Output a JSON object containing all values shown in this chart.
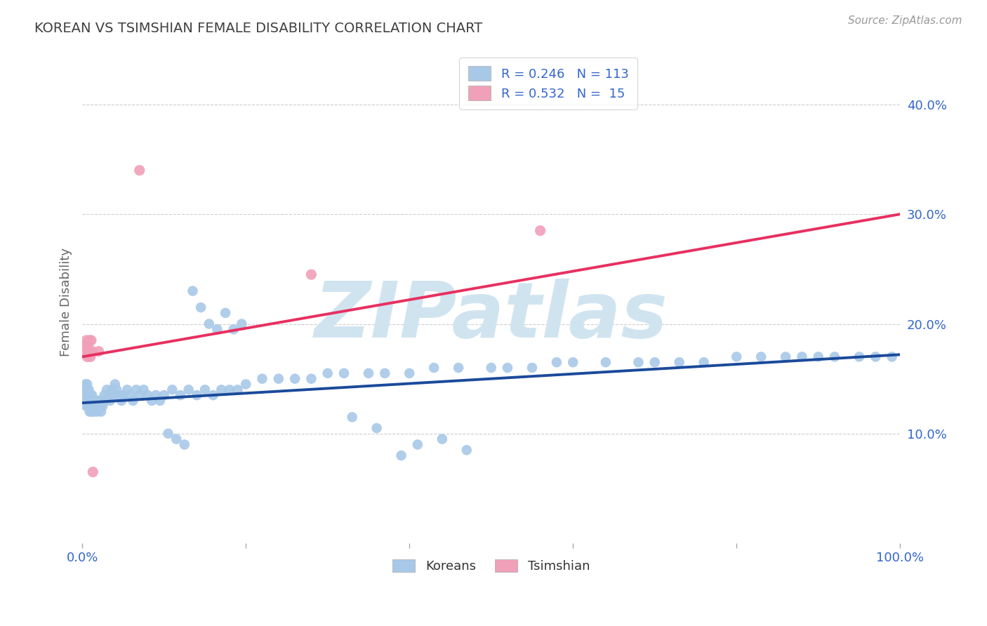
{
  "title": "KOREAN VS TSIMSHIAN FEMALE DISABILITY CORRELATION CHART",
  "source": "Source: ZipAtlas.com",
  "ylabel": "Female Disability",
  "xlim": [
    0.0,
    1.0
  ],
  "ylim": [
    0.0,
    0.44
  ],
  "yticks": [
    0.1,
    0.2,
    0.3,
    0.4
  ],
  "ytick_labels": [
    "10.0%",
    "20.0%",
    "30.0%",
    "40.0%"
  ],
  "xticks": [
    0.0,
    0.2,
    0.4,
    0.6,
    0.8,
    1.0
  ],
  "xtick_labels": [
    "0.0%",
    "",
    "",
    "",
    "",
    "100.0%"
  ],
  "korean_R": 0.246,
  "korean_N": 113,
  "tsimshian_R": 0.532,
  "tsimshian_N": 15,
  "korean_color": "#a8c8e8",
  "tsimshian_color": "#f0a0b8",
  "korean_line_color": "#1a4a9a",
  "tsimshian_line_color": "#e83060",
  "watermark": "ZIPatlas",
  "watermark_color": "#d0e4f0",
  "grid_color": "#cccccc",
  "background_color": "#ffffff",
  "title_color": "#404040",
  "axis_label_color": "#3366cc",
  "korean_line_y0": 0.128,
  "korean_line_y1": 0.172,
  "tsimshian_line_y0": 0.17,
  "tsimshian_line_y1": 0.3,
  "korean_scatter_x": [
    0.003,
    0.004,
    0.004,
    0.005,
    0.005,
    0.006,
    0.006,
    0.007,
    0.007,
    0.008,
    0.008,
    0.009,
    0.009,
    0.01,
    0.01,
    0.011,
    0.011,
    0.012,
    0.012,
    0.013,
    0.014,
    0.014,
    0.015,
    0.015,
    0.016,
    0.017,
    0.018,
    0.019,
    0.02,
    0.021,
    0.022,
    0.023,
    0.024,
    0.025,
    0.027,
    0.028,
    0.03,
    0.032,
    0.034,
    0.036,
    0.038,
    0.04,
    0.042,
    0.045,
    0.048,
    0.05,
    0.055,
    0.058,
    0.062,
    0.066,
    0.07,
    0.075,
    0.08,
    0.085,
    0.09,
    0.095,
    0.1,
    0.11,
    0.12,
    0.13,
    0.14,
    0.15,
    0.16,
    0.17,
    0.18,
    0.19,
    0.2,
    0.22,
    0.24,
    0.26,
    0.28,
    0.3,
    0.32,
    0.35,
    0.37,
    0.4,
    0.43,
    0.46,
    0.5,
    0.52,
    0.55,
    0.58,
    0.6,
    0.64,
    0.68,
    0.7,
    0.73,
    0.76,
    0.8,
    0.83,
    0.86,
    0.88,
    0.9,
    0.92,
    0.95,
    0.97,
    0.99,
    0.39,
    0.41,
    0.44,
    0.47,
    0.33,
    0.36,
    0.135,
    0.145,
    0.155,
    0.165,
    0.175,
    0.185,
    0.195,
    0.105,
    0.115,
    0.125
  ],
  "korean_scatter_y": [
    0.135,
    0.13,
    0.145,
    0.125,
    0.14,
    0.13,
    0.145,
    0.125,
    0.135,
    0.13,
    0.14,
    0.13,
    0.12,
    0.135,
    0.125,
    0.13,
    0.12,
    0.135,
    0.125,
    0.13,
    0.125,
    0.12,
    0.13,
    0.125,
    0.13,
    0.125,
    0.12,
    0.13,
    0.125,
    0.13,
    0.125,
    0.12,
    0.13,
    0.125,
    0.135,
    0.13,
    0.14,
    0.135,
    0.13,
    0.14,
    0.135,
    0.145,
    0.14,
    0.135,
    0.13,
    0.135,
    0.14,
    0.135,
    0.13,
    0.14,
    0.135,
    0.14,
    0.135,
    0.13,
    0.135,
    0.13,
    0.135,
    0.14,
    0.135,
    0.14,
    0.135,
    0.14,
    0.135,
    0.14,
    0.14,
    0.14,
    0.145,
    0.15,
    0.15,
    0.15,
    0.15,
    0.155,
    0.155,
    0.155,
    0.155,
    0.155,
    0.16,
    0.16,
    0.16,
    0.16,
    0.16,
    0.165,
    0.165,
    0.165,
    0.165,
    0.165,
    0.165,
    0.165,
    0.17,
    0.17,
    0.17,
    0.17,
    0.17,
    0.17,
    0.17,
    0.17,
    0.17,
    0.08,
    0.09,
    0.095,
    0.085,
    0.115,
    0.105,
    0.23,
    0.215,
    0.2,
    0.195,
    0.21,
    0.195,
    0.2,
    0.1,
    0.095,
    0.09
  ],
  "tsimshian_scatter_x": [
    0.003,
    0.004,
    0.005,
    0.006,
    0.007,
    0.008,
    0.009,
    0.01,
    0.011,
    0.012,
    0.013,
    0.02,
    0.28,
    0.56,
    0.07
  ],
  "tsimshian_scatter_y": [
    0.18,
    0.175,
    0.185,
    0.17,
    0.18,
    0.175,
    0.185,
    0.17,
    0.185,
    0.175,
    0.065,
    0.175,
    0.245,
    0.285,
    0.34
  ]
}
